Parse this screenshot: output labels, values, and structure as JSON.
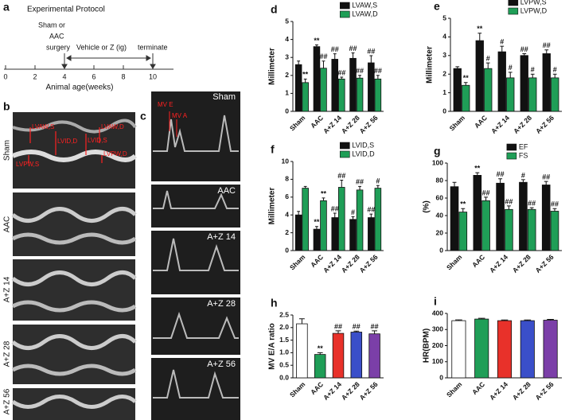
{
  "protocol": {
    "panel": "a",
    "title": "Experimental Protocol",
    "surgery": [
      "Sham or",
      "AAC",
      "surgery"
    ],
    "treatment": "Vehicle or Z (ig)",
    "end": "terminate",
    "ticks": [
      "0",
      "2",
      "4",
      "6",
      "8",
      "10"
    ],
    "axis_label": "Animal age(weeks)"
  },
  "m_mode": {
    "panel": "b",
    "groups": [
      "Sham",
      "AAC",
      "A+Z 14",
      "A+Z 28",
      "A+Z 56"
    ],
    "markers": [
      "LVAW,S",
      "LVID,D",
      "LVPW,S",
      "LVAW,D",
      "LVID,S",
      "LVPW,D"
    ]
  },
  "doppler": {
    "panel": "c",
    "groups": [
      "Sham",
      "AAC",
      "A+Z 14",
      "A+Z 28",
      "A+Z 56"
    ],
    "markers": [
      "MV E",
      "MV A"
    ]
  },
  "chart_data": [
    {
      "type": "bar",
      "panel": "d",
      "y_label": "Millimeter",
      "categories": [
        "Sham",
        "AAC",
        "A+Z 14",
        "A+Z 28",
        "A+Z 56"
      ],
      "ylim": [
        0,
        5
      ],
      "yticks": [
        0,
        1,
        2,
        3,
        4,
        5
      ],
      "legend": "upper right",
      "series": [
        {
          "name": "LVAW,S",
          "color": "#111111",
          "values": [
            2.6,
            3.6,
            2.9,
            2.95,
            2.7
          ],
          "errors": [
            0.2,
            0.1,
            0.3,
            0.3,
            0.4
          ],
          "sig": [
            null,
            "**",
            "##",
            "##",
            "##"
          ]
        },
        {
          "name": "LVAW,D",
          "color": "#1f9e57",
          "values": [
            1.6,
            2.4,
            1.8,
            1.85,
            1.8
          ],
          "errors": [
            0.2,
            0.4,
            0.1,
            0.15,
            0.2
          ],
          "sig": [
            "**",
            "##",
            "##",
            "##",
            "##"
          ]
        }
      ]
    },
    {
      "type": "bar",
      "panel": "e",
      "y_label": "Millimeter",
      "categories": [
        "Sham",
        "AAC",
        "A+Z 14",
        "A+Z 28",
        "A+Z 56"
      ],
      "ylim": [
        0,
        5
      ],
      "yticks": [
        0,
        1,
        2,
        3,
        4,
        5
      ],
      "legend": "upper right",
      "series": [
        {
          "name": "LVPW,S",
          "color": "#111111",
          "values": [
            2.3,
            3.8,
            3.2,
            3.0,
            3.1
          ],
          "errors": [
            0.1,
            0.4,
            0.3,
            0.1,
            0.2
          ],
          "sig": [
            null,
            "**",
            "#",
            "##",
            "##"
          ]
        },
        {
          "name": "LVPW,D",
          "color": "#1f9e57",
          "values": [
            1.4,
            2.3,
            1.8,
            1.8,
            1.8
          ],
          "errors": [
            0.15,
            0.3,
            0.3,
            0.2,
            0.2
          ],
          "sig": [
            "**",
            "#",
            "#",
            "#",
            "#"
          ]
        }
      ]
    },
    {
      "type": "bar",
      "panel": "f",
      "y_label": "Millimeter",
      "categories": [
        "Sham",
        "AAC",
        "A+Z 14",
        "A+Z 28",
        "A+Z 56"
      ],
      "ylim": [
        0,
        10
      ],
      "yticks": [
        0,
        2,
        4,
        6,
        8,
        10
      ],
      "legend": "upper right",
      "series": [
        {
          "name": "LVID,S",
          "color": "#111111",
          "values": [
            4.0,
            2.4,
            3.7,
            3.5,
            3.7
          ],
          "errors": [
            0.4,
            0.3,
            0.5,
            0.3,
            0.4
          ],
          "sig": [
            null,
            "**",
            "##",
            "#",
            "##"
          ]
        },
        {
          "name": "LVID,D",
          "color": "#1f9e57",
          "values": [
            7.0,
            5.6,
            7.1,
            6.8,
            7.0
          ],
          "errors": [
            0.2,
            0.3,
            0.8,
            0.4,
            0.3
          ],
          "sig": [
            null,
            "**",
            "##",
            "##",
            "#"
          ]
        }
      ]
    },
    {
      "type": "bar",
      "panel": "g",
      "y_label": "(%)",
      "categories": [
        "Sham",
        "AAC",
        "A+Z 14",
        "A+Z 28",
        "A+Z 56"
      ],
      "ylim": [
        0,
        100
      ],
      "yticks": [
        0,
        20,
        40,
        60,
        80,
        100
      ],
      "legend": "upper right",
      "series": [
        {
          "name": "EF",
          "color": "#111111",
          "values": [
            73,
            86,
            77,
            78,
            75
          ],
          "errors": [
            5,
            3,
            5,
            3,
            4
          ],
          "sig": [
            null,
            "**",
            "##",
            "#",
            "##"
          ]
        },
        {
          "name": "FS",
          "color": "#1f9e57",
          "values": [
            44,
            57,
            47,
            47,
            45
          ],
          "errors": [
            4,
            4,
            4,
            2,
            3
          ],
          "sig": [
            "**",
            "##",
            "##",
            "##",
            "##"
          ]
        }
      ]
    },
    {
      "type": "bar",
      "panel": "h",
      "y_label": "MV E/A ratio",
      "categories": [
        "Sham",
        "AAC",
        "A+Z 14",
        "A+Z 28",
        "A+Z 56"
      ],
      "ylim": [
        0,
        2.5
      ],
      "yticks": [
        {
          "value": 0,
          "label": "0.0"
        },
        0.5,
        {
          "value": 1,
          "label": "1.0"
        },
        1.5,
        {
          "value": 2,
          "label": "2.0"
        },
        2.5
      ],
      "values": [
        2.15,
        0.93,
        1.77,
        1.82,
        1.75
      ],
      "errors": [
        0.2,
        0.07,
        0.1,
        0.04,
        0.12
      ],
      "sig": [
        null,
        "**",
        "##",
        "##",
        "##"
      ],
      "colors": [
        "#ffffff",
        "#1f9e57",
        "#e8312a",
        "#3a4fc9",
        "#7b3fa8"
      ]
    },
    {
      "type": "bar",
      "panel": "i",
      "y_label": "HR(BPM)",
      "categories": [
        "Sham",
        "AAC",
        "A+Z 14",
        "A+Z 28",
        "A+Z 56"
      ],
      "ylim": [
        0,
        400
      ],
      "yticks": [
        0,
        100,
        200,
        300,
        400
      ],
      "values": [
        355,
        365,
        355,
        355,
        358
      ],
      "errors": [
        5,
        5,
        4,
        4,
        5
      ],
      "colors": [
        "#ffffff",
        "#1f9e57",
        "#e8312a",
        "#3a4fc9",
        "#7b3fa8"
      ]
    }
  ]
}
